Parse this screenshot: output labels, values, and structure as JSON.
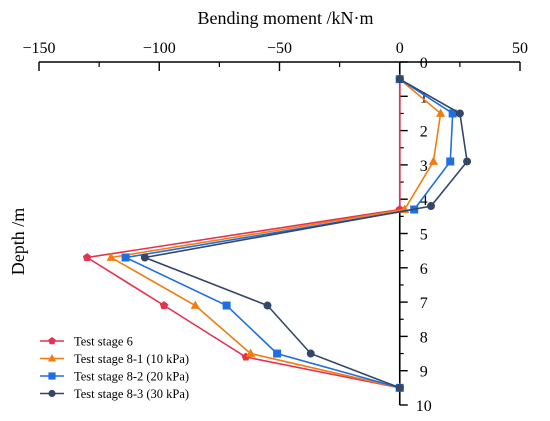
{
  "chart_data": {
    "type": "line",
    "xlabel": "Bending moment /kN·m",
    "ylabel": "Depth /m",
    "xlim": [
      -150,
      50
    ],
    "ylim": [
      0,
      10
    ],
    "y_inverted": true,
    "x_axis_position": "top",
    "x_ticks": [
      -150,
      -100,
      -50,
      0,
      50
    ],
    "x_tick_labels": [
      "−150",
      "−100",
      "−50",
      "0",
      "50"
    ],
    "y_ticks": [
      0,
      1,
      2,
      3,
      4,
      5,
      6,
      7,
      8,
      9,
      10
    ],
    "grid": false,
    "legend_position": "bottom-left",
    "series": [
      {
        "name": "Test stage 6",
        "color": "#e8304f",
        "marker": "pentagon",
        "points": [
          [
            0,
            0.5
          ],
          [
            0,
            4.3
          ],
          [
            -130,
            5.7
          ],
          [
            -98,
            7.1
          ],
          [
            -64,
            8.6
          ],
          [
            0,
            9.5
          ]
        ]
      },
      {
        "name": "Test stage 8-1 (10 kPa)",
        "color": "#f07d12",
        "marker": "triangle",
        "points": [
          [
            0,
            0.5
          ],
          [
            17,
            1.5
          ],
          [
            14,
            2.9
          ],
          [
            2,
            4.3
          ],
          [
            -120,
            5.7
          ],
          [
            -85,
            7.1
          ],
          [
            -62,
            8.5
          ],
          [
            0,
            9.5
          ]
        ]
      },
      {
        "name": "Test stage 8-2 (20 kPa)",
        "color": "#1f6fe0",
        "marker": "square",
        "points": [
          [
            0,
            0.5
          ],
          [
            22,
            1.5
          ],
          [
            21,
            2.9
          ],
          [
            6,
            4.3
          ],
          [
            -114,
            5.7
          ],
          [
            -72,
            7.1
          ],
          [
            -51,
            8.5
          ],
          [
            0,
            9.5
          ]
        ]
      },
      {
        "name": "Test stage 8-3 (30 kPa)",
        "color": "#354769",
        "marker": "circle",
        "points": [
          [
            0,
            0.5
          ],
          [
            25,
            1.5
          ],
          [
            28,
            2.9
          ],
          [
            13,
            4.2
          ],
          [
            -106,
            5.7
          ],
          [
            -55,
            7.1
          ],
          [
            -37,
            8.5
          ],
          [
            0,
            9.5
          ]
        ]
      }
    ]
  }
}
